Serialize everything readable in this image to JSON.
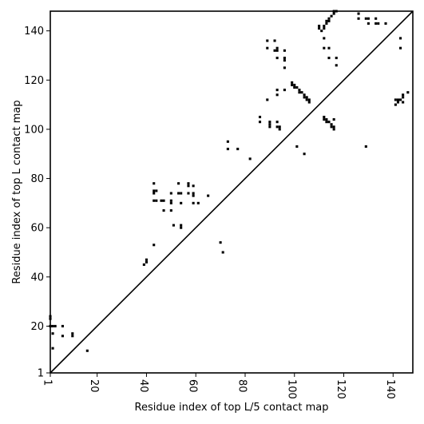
{
  "chart_data": {
    "type": "heatmap",
    "title": "",
    "xlabel": "Residue index of top L/5 contact map",
    "ylabel": "Residue index of top L contact map",
    "xlim": [
      1,
      148
    ],
    "ylim": [
      1,
      148
    ],
    "x_ticks": [
      1,
      20,
      40,
      60,
      80,
      100,
      120,
      140
    ],
    "y_ticks": [
      1,
      20,
      40,
      60,
      80,
      100,
      120,
      140
    ],
    "x_tick_labels": [
      "1",
      "20",
      "40",
      "60",
      "80",
      "100",
      "120",
      "140"
    ],
    "y_tick_labels": [
      "1",
      "20",
      "40",
      "60",
      "80",
      "100",
      "120",
      "140"
    ],
    "diagonal": true,
    "grid": false,
    "cell_color": "#000000",
    "background_color": "#ffffff",
    "contacts": [
      [
        1,
        24
      ],
      [
        1,
        23
      ],
      [
        1,
        20
      ],
      [
        2,
        20
      ],
      [
        2,
        17
      ],
      [
        2,
        11
      ],
      [
        3,
        20
      ],
      [
        6,
        20
      ],
      [
        6,
        16
      ],
      [
        10,
        17
      ],
      [
        10,
        16
      ],
      [
        16,
        10
      ],
      [
        39,
        45
      ],
      [
        40,
        46
      ],
      [
        40,
        47
      ],
      [
        43,
        53
      ],
      [
        43,
        78
      ],
      [
        43,
        75
      ],
      [
        44,
        75
      ],
      [
        43,
        74
      ],
      [
        43,
        71
      ],
      [
        44,
        71
      ],
      [
        46,
        71
      ],
      [
        47,
        71
      ],
      [
        47,
        67
      ],
      [
        50,
        74
      ],
      [
        50,
        71
      ],
      [
        50,
        70
      ],
      [
        50,
        67
      ],
      [
        51,
        61
      ],
      [
        53,
        78
      ],
      [
        53,
        74
      ],
      [
        54,
        74
      ],
      [
        54,
        70
      ],
      [
        54,
        61
      ],
      [
        54,
        60
      ],
      [
        57,
        78
      ],
      [
        57,
        77
      ],
      [
        57,
        74
      ],
      [
        59,
        77
      ],
      [
        59,
        74
      ],
      [
        59,
        73
      ],
      [
        59,
        70
      ],
      [
        61,
        70
      ],
      [
        65,
        73
      ],
      [
        70,
        54
      ],
      [
        71,
        50
      ],
      [
        73,
        95
      ],
      [
        73,
        92
      ],
      [
        77,
        92
      ],
      [
        82,
        88
      ],
      [
        86,
        105
      ],
      [
        86,
        103
      ],
      [
        89,
        136
      ],
      [
        89,
        133
      ],
      [
        89,
        112
      ],
      [
        90,
        103
      ],
      [
        90,
        102
      ],
      [
        90,
        101
      ],
      [
        92,
        136
      ],
      [
        92,
        132
      ],
      [
        93,
        133
      ],
      [
        93,
        132
      ],
      [
        93,
        129
      ],
      [
        93,
        116
      ],
      [
        93,
        114
      ],
      [
        93,
        103
      ],
      [
        93,
        101
      ],
      [
        94,
        101
      ],
      [
        94,
        100
      ],
      [
        96,
        132
      ],
      [
        96,
        129
      ],
      [
        96,
        128
      ],
      [
        96,
        125
      ],
      [
        96,
        116
      ],
      [
        99,
        118
      ],
      [
        99,
        119
      ],
      [
        100,
        118
      ],
      [
        100,
        117
      ],
      [
        101,
        117
      ],
      [
        102,
        116
      ],
      [
        102,
        115
      ],
      [
        101,
        93
      ],
      [
        103,
        115
      ],
      [
        104,
        114
      ],
      [
        104,
        113
      ],
      [
        105,
        113
      ],
      [
        105,
        112
      ],
      [
        106,
        112
      ],
      [
        106,
        111
      ],
      [
        104,
        90
      ],
      [
        110,
        142
      ],
      [
        110,
        141
      ],
      [
        111,
        140
      ],
      [
        112,
        142
      ],
      [
        112,
        141
      ],
      [
        113,
        143
      ],
      [
        113,
        144
      ],
      [
        114,
        145
      ],
      [
        114,
        144
      ],
      [
        115,
        146
      ],
      [
        116,
        147
      ],
      [
        117,
        148
      ],
      [
        116,
        148
      ],
      [
        112,
        137
      ],
      [
        112,
        133
      ],
      [
        114,
        133
      ],
      [
        114,
        129
      ],
      [
        117,
        129
      ],
      [
        117,
        126
      ],
      [
        112,
        105
      ],
      [
        112,
        104
      ],
      [
        113,
        104
      ],
      [
        113,
        103
      ],
      [
        114,
        103
      ],
      [
        115,
        102
      ],
      [
        115,
        101
      ],
      [
        116,
        101
      ],
      [
        116,
        100
      ],
      [
        116,
        104
      ],
      [
        126,
        147
      ],
      [
        126,
        145
      ],
      [
        129,
        145
      ],
      [
        130,
        145
      ],
      [
        130,
        143
      ],
      [
        133,
        145
      ],
      [
        133,
        143
      ],
      [
        134,
        143
      ],
      [
        137,
        143
      ],
      [
        129,
        93
      ],
      [
        141,
        112
      ],
      [
        141,
        110
      ],
      [
        142,
        112
      ],
      [
        142,
        111
      ],
      [
        143,
        137
      ],
      [
        143,
        133
      ],
      [
        143,
        112
      ],
      [
        144,
        111
      ],
      [
        144,
        113
      ],
      [
        144,
        114
      ],
      [
        146,
        115
      ]
    ]
  }
}
